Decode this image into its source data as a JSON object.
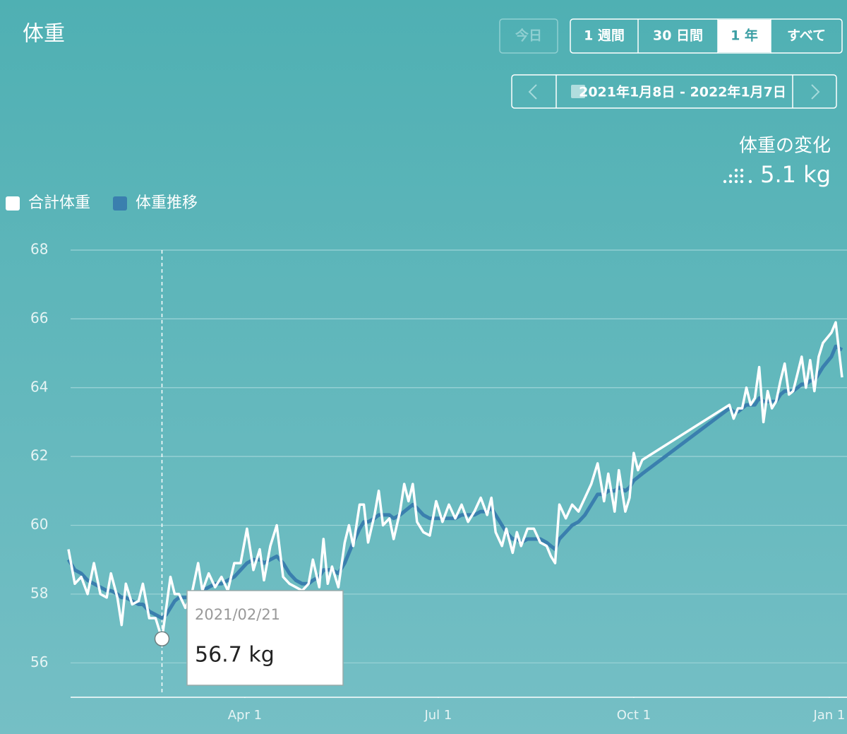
{
  "header": {
    "title": "体重",
    "buttons": [
      "今日",
      "1 週間",
      "30 日間",
      "1 年",
      "すべて"
    ],
    "active_button": 3,
    "disabled_button": 0,
    "date_range": "2021年1月8日 - 2022年1月7日",
    "change_label": "体重の変化",
    "change": "5.1 kg"
  },
  "chart_data": {
    "type": "line",
    "x": [
      "2021-01-08",
      "2021-01-11",
      "2021-01-14",
      "2021-01-17",
      "2021-01-20",
      "2021-01-23",
      "2021-01-26",
      "2021-01-28",
      "2021-01-31",
      "2021-02-02",
      "2021-02-04",
      "2021-02-07",
      "2021-02-10",
      "2021-02-12",
      "2021-02-15",
      "2021-02-18",
      "2021-02-21",
      "2021-02-23",
      "2021-02-25",
      "2021-02-27",
      "2021-03-01",
      "2021-03-04",
      "2021-03-07",
      "2021-03-10",
      "2021-03-12",
      "2021-03-15",
      "2021-03-18",
      "2021-03-21",
      "2021-03-24",
      "2021-03-27",
      "2021-03-30",
      "2021-04-02",
      "2021-04-05",
      "2021-04-08",
      "2021-04-10",
      "2021-04-13",
      "2021-04-16",
      "2021-04-19",
      "2021-04-22",
      "2021-04-25",
      "2021-04-28",
      "2021-05-01",
      "2021-05-03",
      "2021-05-06",
      "2021-05-08",
      "2021-05-10",
      "2021-05-12",
      "2021-05-15",
      "2021-05-18",
      "2021-05-20",
      "2021-05-22",
      "2021-05-25",
      "2021-05-27",
      "2021-05-29",
      "2021-06-01",
      "2021-06-03",
      "2021-06-05",
      "2021-06-08",
      "2021-06-10",
      "2021-06-13",
      "2021-06-15",
      "2021-06-17",
      "2021-06-19",
      "2021-06-21",
      "2021-06-24",
      "2021-06-27",
      "2021-06-30",
      "2021-07-03",
      "2021-07-06",
      "2021-07-09",
      "2021-07-12",
      "2021-07-15",
      "2021-07-18",
      "2021-07-21",
      "2021-07-24",
      "2021-07-26",
      "2021-07-28",
      "2021-07-31",
      "2021-08-02",
      "2021-08-05",
      "2021-08-07",
      "2021-08-09",
      "2021-08-12",
      "2021-08-15",
      "2021-08-18",
      "2021-08-21",
      "2021-08-23",
      "2021-08-25",
      "2021-08-27",
      "2021-08-30",
      "2021-09-02",
      "2021-09-05",
      "2021-09-08",
      "2021-09-11",
      "2021-09-14",
      "2021-09-17",
      "2021-09-19",
      "2021-09-22",
      "2021-09-24",
      "2021-09-27",
      "2021-09-29",
      "2021-10-01",
      "2021-10-03",
      "2021-10-05",
      "2021-11-15",
      "2021-11-17",
      "2021-11-19",
      "2021-11-21",
      "2021-11-23",
      "2021-11-25",
      "2021-11-27",
      "2021-11-29",
      "2021-12-01",
      "2021-12-03",
      "2021-12-05",
      "2021-12-07",
      "2021-12-09",
      "2021-12-11",
      "2021-12-13",
      "2021-12-15",
      "2021-12-17",
      "2021-12-19",
      "2021-12-21",
      "2021-12-23",
      "2021-12-25",
      "2021-12-27",
      "2021-12-29",
      "2022-01-02",
      "2022-01-04",
      "2022-01-07"
    ],
    "series": [
      {
        "name": "合計体重",
        "color": "#ffffff",
        "values": [
          59.3,
          58.3,
          58.5,
          58.0,
          58.9,
          58.0,
          57.9,
          58.6,
          57.9,
          57.1,
          58.3,
          57.7,
          57.8,
          58.3,
          57.3,
          57.3,
          56.7,
          57.6,
          58.5,
          58.0,
          58.0,
          57.6,
          58.0,
          58.9,
          58.1,
          58.6,
          58.2,
          58.5,
          58.1,
          58.9,
          58.9,
          59.9,
          58.7,
          59.3,
          58.4,
          59.4,
          60.0,
          58.5,
          58.3,
          58.2,
          58.1,
          58.3,
          59.0,
          58.2,
          59.6,
          58.3,
          58.8,
          58.2,
          59.5,
          60.0,
          59.4,
          60.6,
          60.6,
          59.5,
          60.3,
          61.0,
          60.0,
          60.2,
          59.6,
          60.4,
          61.2,
          60.7,
          61.2,
          60.1,
          59.8,
          59.7,
          60.7,
          60.1,
          60.6,
          60.2,
          60.6,
          60.1,
          60.4,
          60.8,
          60.3,
          60.8,
          59.8,
          59.4,
          59.9,
          59.2,
          59.8,
          59.4,
          59.9,
          59.9,
          59.5,
          59.4,
          59.1,
          58.9,
          60.6,
          60.2,
          60.6,
          60.4,
          60.8,
          61.2,
          61.8,
          60.7,
          61.5,
          60.4,
          61.6,
          60.4,
          60.8,
          62.1,
          61.6,
          61.9,
          63.5,
          63.1,
          63.4,
          63.4,
          64.0,
          63.5,
          63.7,
          64.6,
          63.0,
          63.9,
          63.4,
          63.6,
          64.2,
          64.7,
          63.8,
          63.9,
          64.4,
          64.9,
          64.0,
          64.8,
          63.9,
          64.9,
          65.3,
          65.6,
          65.9,
          64.3
        ]
      },
      {
        "name": "体重推移",
        "color": "#3a7fae",
        "values": [
          59.0,
          58.7,
          58.6,
          58.4,
          58.3,
          58.2,
          58.1,
          58.1,
          58.0,
          57.9,
          57.9,
          57.8,
          57.7,
          57.7,
          57.5,
          57.4,
          57.3,
          57.4,
          57.6,
          57.8,
          57.9,
          57.9,
          57.9,
          58.0,
          58.1,
          58.2,
          58.3,
          58.3,
          58.4,
          58.5,
          58.7,
          58.9,
          59.0,
          59.0,
          58.9,
          59.0,
          59.1,
          58.9,
          58.6,
          58.4,
          58.3,
          58.3,
          58.4,
          58.5,
          58.7,
          58.7,
          58.7,
          58.6,
          58.9,
          59.2,
          59.5,
          59.9,
          60.1,
          60.1,
          60.2,
          60.3,
          60.3,
          60.3,
          60.2,
          60.3,
          60.4,
          60.5,
          60.6,
          60.5,
          60.3,
          60.2,
          60.2,
          60.2,
          60.2,
          60.2,
          60.3,
          60.3,
          60.3,
          60.4,
          60.4,
          60.5,
          60.3,
          60.0,
          59.8,
          59.6,
          59.6,
          59.5,
          59.6,
          59.6,
          59.6,
          59.5,
          59.4,
          59.3,
          59.6,
          59.8,
          60.0,
          60.1,
          60.3,
          60.6,
          60.9,
          60.9,
          61.0,
          61.0,
          61.1,
          61.0,
          61.1,
          61.3,
          61.4,
          61.5,
          63.4,
          63.3,
          63.3,
          63.4,
          63.5,
          63.5,
          63.5,
          63.7,
          63.6,
          63.6,
          63.6,
          63.6,
          63.8,
          63.9,
          63.9,
          63.9,
          64.0,
          64.1,
          64.1,
          64.2,
          64.2,
          64.4,
          64.6,
          64.9,
          65.2,
          65.1
        ]
      }
    ],
    "xlim": [
      "2021-01-08",
      "2022-01-08"
    ],
    "xticks": [
      {
        "value": "2021-04-01",
        "label": "Apr 1"
      },
      {
        "value": "2021-07-01",
        "label": "Jul 1"
      },
      {
        "value": "2021-10-01",
        "label": "Oct 1"
      },
      {
        "value": "2022-01-01",
        "label": "Jan 1"
      }
    ],
    "ylim": [
      55,
      68
    ],
    "yticks": [
      56,
      58,
      60,
      62,
      64,
      66,
      68
    ],
    "grid": true,
    "tooltip": {
      "index": 16,
      "date": "2021/02/21",
      "text": "56.7 kg"
    }
  }
}
